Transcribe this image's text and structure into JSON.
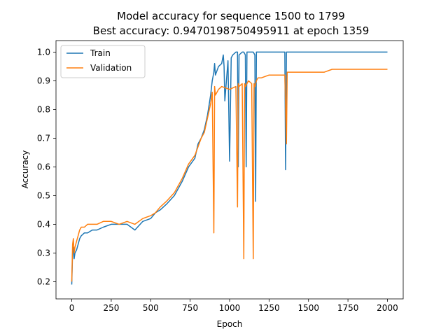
{
  "chart_data": {
    "type": "line",
    "title_line1": "Model accuracy for sequence 1500 to 1799",
    "title_line2": "Best accuracy: 0.9470198750495911 at epoch 1359",
    "xlabel": "Epoch",
    "ylabel": "Accuracy",
    "xlim": [
      -100,
      2100
    ],
    "ylim": [
      0.14,
      1.04
    ],
    "xticks": [
      0,
      250,
      500,
      750,
      1000,
      1250,
      1500,
      1750,
      2000
    ],
    "yticks": [
      0.2,
      0.3,
      0.4,
      0.5,
      0.6,
      0.7,
      0.8,
      0.9,
      1.0
    ],
    "xtick_labels": [
      "0",
      "250",
      "500",
      "750",
      "1000",
      "1250",
      "1500",
      "1750",
      "2000"
    ],
    "ytick_labels": [
      "0.2",
      "0.3",
      "0.4",
      "0.5",
      "0.6",
      "0.7",
      "0.8",
      "0.9",
      "1.0"
    ],
    "grid": false,
    "legend_position": "upper-left",
    "series": [
      {
        "name": "Train",
        "color": "#1f77b4",
        "x": [
          0,
          5,
          10,
          15,
          20,
          30,
          40,
          50,
          60,
          80,
          100,
          130,
          160,
          200,
          250,
          300,
          350,
          400,
          450,
          500,
          530,
          560,
          600,
          650,
          700,
          740,
          780,
          800,
          820,
          840,
          860,
          880,
          890,
          900,
          905,
          910,
          930,
          950,
          960,
          965,
          970,
          990,
          1000,
          1010,
          1020,
          1040,
          1050,
          1055,
          1060,
          1080,
          1090,
          1100,
          1105,
          1110,
          1130,
          1150,
          1160,
          1165,
          1170,
          1200,
          1250,
          1300,
          1350,
          1355,
          1360,
          1370,
          1400,
          1450,
          1500,
          1550,
          1600,
          1650,
          1700,
          1750,
          1800,
          1850,
          1900,
          1950,
          2000
        ],
        "y": [
          0.19,
          0.3,
          0.32,
          0.28,
          0.3,
          0.31,
          0.33,
          0.35,
          0.36,
          0.37,
          0.37,
          0.38,
          0.38,
          0.39,
          0.4,
          0.4,
          0.4,
          0.38,
          0.41,
          0.42,
          0.44,
          0.45,
          0.47,
          0.5,
          0.55,
          0.6,
          0.63,
          0.68,
          0.7,
          0.73,
          0.78,
          0.85,
          0.9,
          0.93,
          0.96,
          0.92,
          0.95,
          0.96,
          0.99,
          0.95,
          0.83,
          0.97,
          0.62,
          0.98,
          0.99,
          1.0,
          1.0,
          0.6,
          0.99,
          1.0,
          1.0,
          0.99,
          0.6,
          1.0,
          1.0,
          1.0,
          0.99,
          0.48,
          1.0,
          1.0,
          1.0,
          1.0,
          1.0,
          0.59,
          1.0,
          1.0,
          1.0,
          1.0,
          1.0,
          1.0,
          1.0,
          1.0,
          1.0,
          1.0,
          1.0,
          1.0,
          1.0,
          1.0,
          1.0
        ]
      },
      {
        "name": "Validation",
        "color": "#ff7f0e",
        "x": [
          0,
          5,
          10,
          15,
          20,
          30,
          40,
          50,
          60,
          80,
          100,
          130,
          160,
          200,
          250,
          300,
          350,
          400,
          450,
          500,
          530,
          560,
          600,
          650,
          700,
          740,
          780,
          800,
          820,
          840,
          860,
          880,
          890,
          900,
          905,
          910,
          930,
          950,
          1000,
          1040,
          1050,
          1055,
          1060,
          1080,
          1090,
          1095,
          1100,
          1120,
          1140,
          1150,
          1155,
          1160,
          1170,
          1180,
          1200,
          1250,
          1300,
          1350,
          1360,
          1365,
          1370,
          1400,
          1450,
          1500,
          1550,
          1600,
          1650,
          1700,
          1750,
          1800,
          1850,
          1900,
          1950,
          2000
        ],
        "y": [
          0.2,
          0.33,
          0.35,
          0.3,
          0.32,
          0.34,
          0.36,
          0.38,
          0.39,
          0.39,
          0.4,
          0.4,
          0.4,
          0.41,
          0.41,
          0.4,
          0.41,
          0.4,
          0.42,
          0.43,
          0.44,
          0.46,
          0.48,
          0.51,
          0.56,
          0.61,
          0.64,
          0.67,
          0.7,
          0.72,
          0.77,
          0.82,
          0.86,
          0.37,
          0.88,
          0.85,
          0.87,
          0.88,
          0.87,
          0.88,
          0.46,
          0.89,
          0.88,
          0.89,
          0.28,
          0.89,
          0.88,
          0.9,
          0.89,
          0.28,
          0.89,
          0.88,
          0.9,
          0.91,
          0.91,
          0.92,
          0.92,
          0.92,
          0.68,
          0.93,
          0.93,
          0.93,
          0.93,
          0.93,
          0.93,
          0.93,
          0.94,
          0.94,
          0.94,
          0.94,
          0.94,
          0.94,
          0.94,
          0.94
        ]
      }
    ]
  }
}
